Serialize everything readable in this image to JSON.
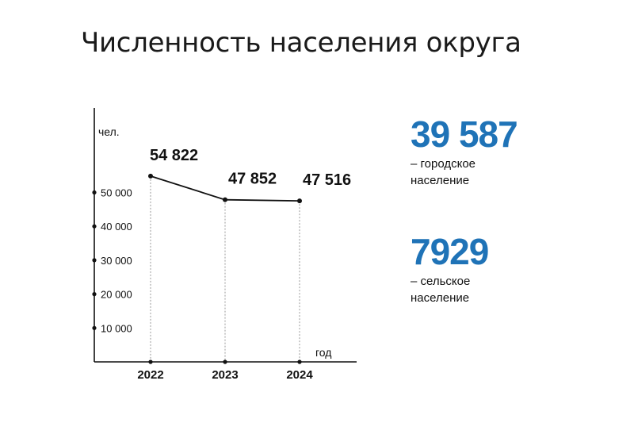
{
  "title": "Численность населения округа",
  "colors": {
    "accent": "#1f73b7",
    "line": "#111111",
    "guide": "#9a9a9a"
  },
  "stats": [
    {
      "value": "39 587",
      "caption_line1": "– городское",
      "caption_line2": "население"
    },
    {
      "value": "7929",
      "caption_line1": "– сельское",
      "caption_line2": "население"
    }
  ],
  "chart_data": {
    "type": "line",
    "title": "Численность населения округа",
    "xlabel": "год",
    "ylabel": "чел.",
    "categories": [
      "2022",
      "2023",
      "2024"
    ],
    "values": [
      54822,
      47852,
      47516
    ],
    "value_labels": [
      "54 822",
      "47 852",
      "47 516"
    ],
    "yticks": [
      10000,
      20000,
      30000,
      40000,
      50000
    ],
    "ytick_labels": [
      "10 000",
      "20 000",
      "30 000",
      "40 000",
      "50 000"
    ],
    "ylim": [
      0,
      60000
    ],
    "grid": false,
    "legend": "none"
  }
}
